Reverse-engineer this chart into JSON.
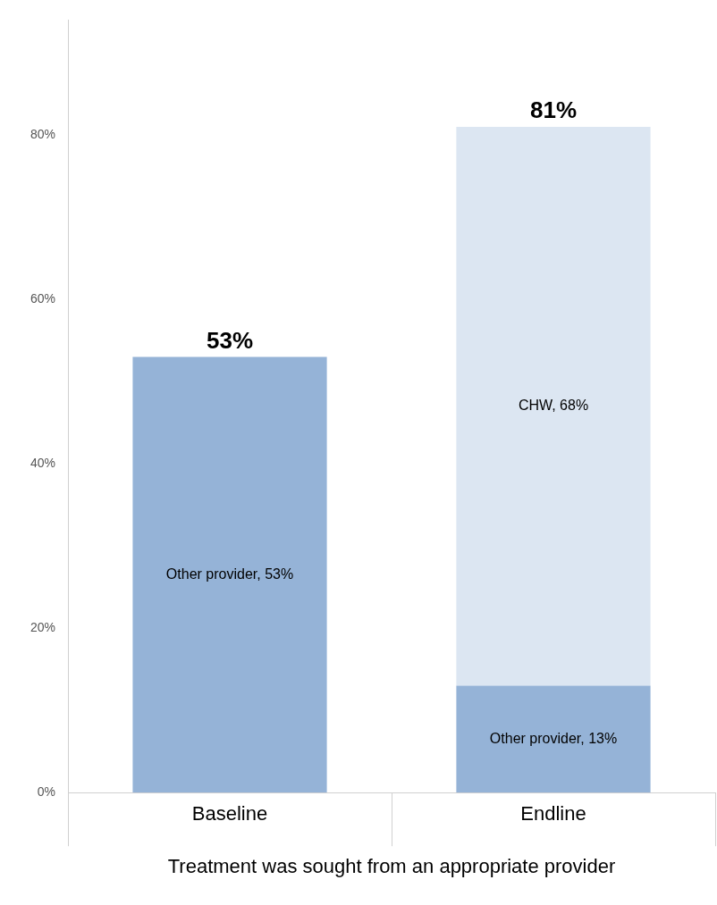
{
  "chart_data": {
    "type": "bar",
    "stacked": true,
    "xlabel": "Treatment was sought from an appropriate provider",
    "categories": [
      "Baseline",
      "Endline"
    ],
    "series": [
      {
        "color": "#95b3d7",
        "values": [
          53,
          13
        ],
        "value_labels": [
          "Other provider, 53%",
          "Other provider, 13%"
        ]
      },
      {
        "color": "#dce6f2",
        "values": [
          null,
          68
        ],
        "value_labels": [
          null,
          "CHW, 68%"
        ]
      }
    ],
    "totals": [
      "53%",
      "81%"
    ],
    "ylim": [
      0,
      94
    ],
    "yticks": [
      {
        "value": 0,
        "label": "0%"
      },
      {
        "value": 20,
        "label": "20%"
      },
      {
        "value": 40,
        "label": "40%"
      },
      {
        "value": 60,
        "label": "60%"
      },
      {
        "value": 80,
        "label": "80%"
      }
    ],
    "grid": false,
    "legend": false
  }
}
